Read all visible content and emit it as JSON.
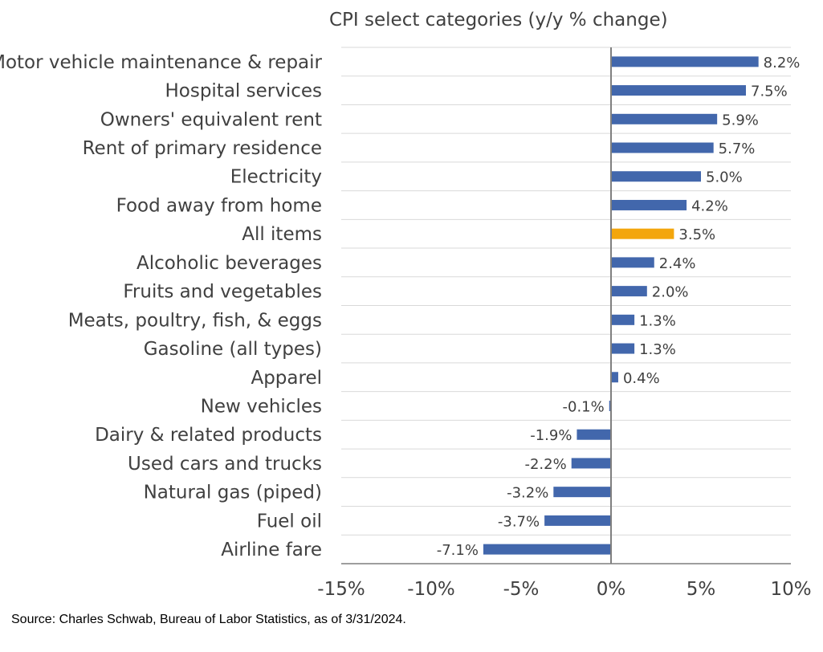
{
  "chart_data": {
    "type": "bar",
    "orientation": "horizontal",
    "title": "CPI select categories (y/y % change)",
    "xlabel": "",
    "ylabel": "",
    "xlim": [
      -15,
      10
    ],
    "x_ticks": [
      "-15%",
      "-10%",
      "-5%",
      "0%",
      "5%",
      "10%"
    ],
    "x_tick_values": [
      -15,
      -10,
      -5,
      0,
      5,
      10
    ],
    "grid": "horizontal",
    "categories": [
      "Motor vehicle maintenance & repair",
      "Hospital services",
      "Owners' equivalent rent",
      "Rent of primary residence",
      "Electricity",
      "Food away from home",
      "All items",
      "Alcoholic beverages",
      "Fruits and vegetables",
      "Meats, poultry, fish, & eggs",
      "Gasoline (all types)",
      "Apparel",
      "New vehicles",
      "Dairy & related products",
      "Used cars and trucks",
      "Natural gas (piped)",
      "Fuel oil",
      "Airline fare"
    ],
    "values": [
      8.2,
      7.5,
      5.9,
      5.7,
      5.0,
      4.2,
      3.5,
      2.4,
      2.0,
      1.3,
      1.3,
      0.4,
      -0.1,
      -1.9,
      -2.2,
      -3.2,
      -3.7,
      -7.1
    ],
    "data_labels": [
      "8.2%",
      "7.5%",
      "5.9%",
      "5.7%",
      "5.0%",
      "4.2%",
      "3.5%",
      "2.4%",
      "2.0%",
      "1.3%",
      "1.3%",
      "0.4%",
      "-0.1%",
      "-1.9%",
      "-2.2%",
      "-3.2%",
      "-3.7%",
      "-7.1%"
    ],
    "highlight_category": "All items",
    "colors": {
      "bar": "#4267AC",
      "highlight": "#F3A60D",
      "grid": "#D9D9D9",
      "axis": "#7F7F7F"
    }
  },
  "source": "Source: Charles Schwab, Bureau of Labor Statistics, as of 3/31/2024."
}
